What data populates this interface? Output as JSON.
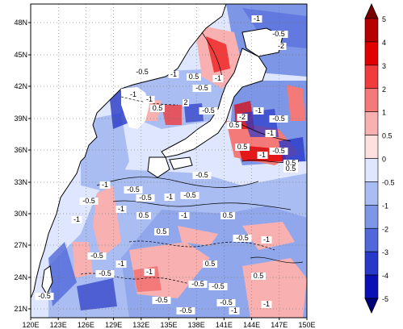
{
  "map": {
    "lat_ticks": [
      "48N",
      "45N",
      "42N",
      "39N",
      "36N",
      "33N",
      "30N",
      "27N",
      "24N",
      "21N"
    ],
    "lon_ticks": [
      "120E",
      "123E",
      "126E",
      "129E",
      "132E",
      "135E",
      "138E",
      "141E",
      "144E",
      "147E",
      "150E"
    ],
    "contour_labels": [
      "-1",
      "-2",
      "-0.5",
      "-0.5",
      "-1",
      "0.5",
      "-1",
      "-0.5",
      "-1",
      "-1",
      "2",
      "0.5",
      "-0.5",
      "-2",
      "0.5",
      "-1",
      "-0.5",
      "-1",
      "0.5",
      "-1",
      "-0.5",
      "0.5",
      "-0.5",
      "-1",
      "-0.5",
      "-0.5",
      "-1",
      "-0.5",
      "-1",
      "0.5",
      "-0.5",
      "-1",
      "0.5",
      "0.5",
      "-1",
      "-0.5",
      "-1",
      "0.5",
      "-0.5",
      "-1",
      "0.5",
      "-0.5",
      "-0.5",
      "0.5",
      "-1",
      "-0.5",
      "-0.5",
      "-0.5",
      "-1",
      "-0.5",
      "-0.5",
      "-1"
    ]
  },
  "colorbar": {
    "labels": [
      "5",
      "4",
      "3",
      "2",
      "1",
      "0.5",
      "0",
      "-0.5",
      "-1",
      "-2",
      "-3",
      "-4",
      "-5"
    ],
    "colors": [
      "#7a0000",
      "#b40000",
      "#e00000",
      "#f03c3c",
      "#f47a7a",
      "#f8b0b0",
      "#fde0e0",
      "#dfe6ff",
      "#a9bdf2",
      "#7d96e6",
      "#5068da",
      "#2838c8",
      "#0a10b4",
      "#00007a"
    ]
  }
}
